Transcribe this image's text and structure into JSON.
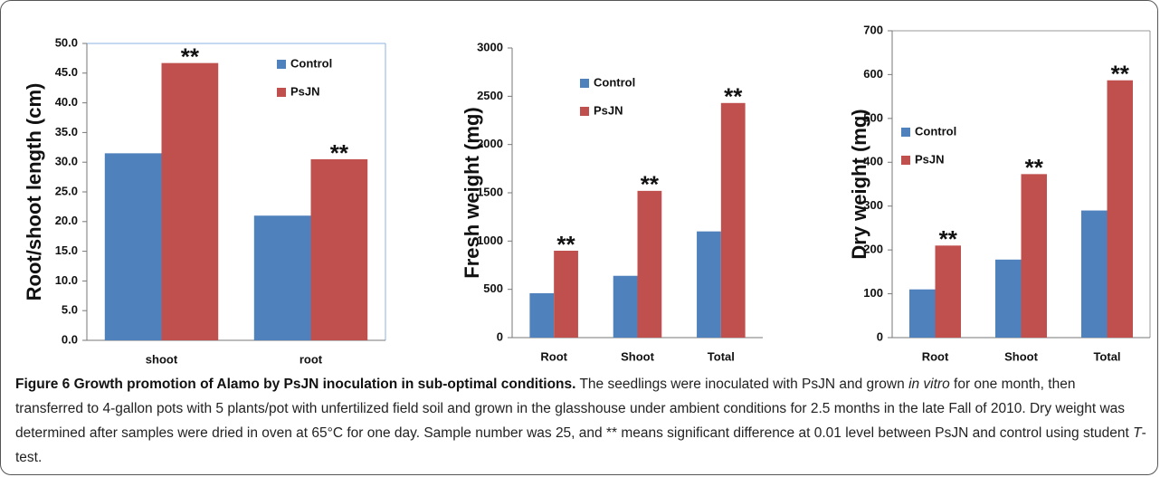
{
  "chart_data": [
    {
      "type": "bar",
      "y_label": "Root/shoot length (cm)",
      "categories": [
        "shoot",
        "root"
      ],
      "series": [
        {
          "name": "Control",
          "color": "#4f81bd",
          "values": [
            31.5,
            21.0
          ]
        },
        {
          "name": "PsJN",
          "color": "#c0504d",
          "values": [
            46.7,
            30.5
          ]
        }
      ],
      "annotations": [
        "**",
        "**"
      ],
      "ylim": [
        0,
        50
      ],
      "yticks": [
        {
          "value": 0,
          "label": "0.0"
        },
        {
          "value": 5,
          "label": "5.0"
        },
        {
          "value": 10,
          "label": "10.0"
        },
        {
          "value": 15,
          "label": "15.0"
        },
        {
          "value": 20,
          "label": "20.0"
        },
        {
          "value": 25,
          "label": "25.0"
        },
        {
          "value": 30,
          "label": "30.0"
        },
        {
          "value": 35,
          "label": "35.0"
        },
        {
          "value": 40,
          "label": "40.0"
        },
        {
          "value": 45,
          "label": "45.0"
        },
        {
          "value": 50,
          "label": "50.0"
        }
      ]
    },
    {
      "type": "bar",
      "y_label": "Fresh weight (mg)",
      "categories": [
        "Root",
        "Shoot",
        "Total"
      ],
      "series": [
        {
          "name": "Control",
          "color": "#4f81bd",
          "values": [
            460,
            640,
            1100
          ]
        },
        {
          "name": "PsJN",
          "color": "#c0504d",
          "values": [
            900,
            1520,
            2430
          ]
        }
      ],
      "annotations": [
        "**",
        "**",
        "**"
      ],
      "ylim": [
        0,
        3000
      ],
      "yticks": [
        0,
        500,
        1000,
        1500,
        2000,
        2500,
        3000
      ]
    },
    {
      "type": "bar",
      "y_label": "Dry weight (mg)",
      "categories": [
        "Root",
        "Shoot",
        "Total"
      ],
      "series": [
        {
          "name": "Control",
          "color": "#4f81bd",
          "values": [
            110,
            178,
            290
          ]
        },
        {
          "name": "PsJN",
          "color": "#c0504d",
          "values": [
            210,
            373,
            587
          ]
        }
      ],
      "annotations": [
        "**",
        "**",
        "**"
      ],
      "ylim": [
        0,
        700
      ],
      "yticks": [
        0,
        100,
        200,
        300,
        400,
        500,
        600,
        700
      ]
    }
  ],
  "caption": {
    "label": "Figure 6 Growth promotion of Alamo by PsJN inoculation in sub-optimal conditions.",
    "parts": [
      " The seedlings were inoculated with PsJN and grown ",
      "in vitro",
      " for one month, then transferred to 4-gallon pots with 5 plants/pot with unfertilized field soil and grown in the glasshouse under ambient conditions for 2.5 months in the late Fall of 2010. Dry weight was determined after samples were dried in oven at 65°C for one day. Sample number was 25, and ** means significant difference at 0.01 level between PsJN and control using student ",
      "T",
      "-test."
    ]
  }
}
